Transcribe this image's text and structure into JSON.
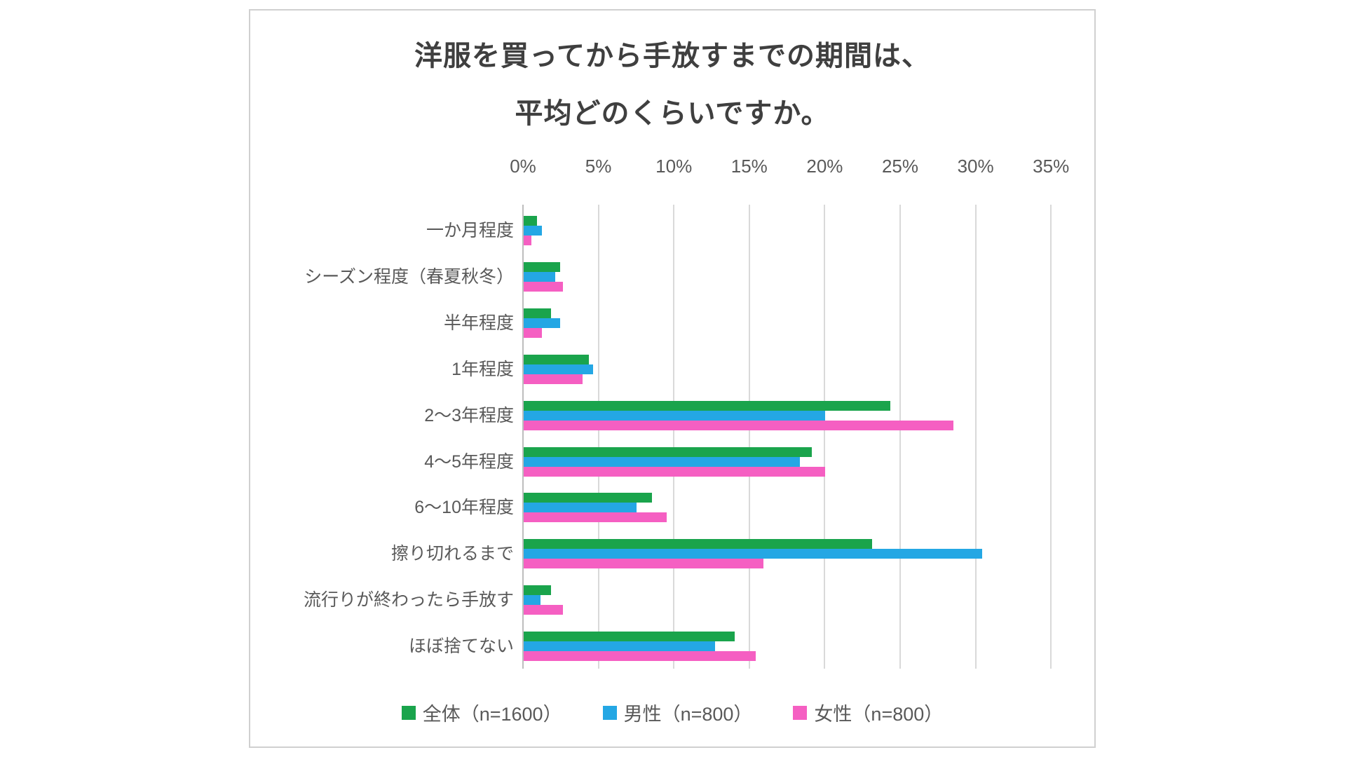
{
  "page": {
    "background_color": "#ffffff",
    "chart_border_color": "#d0d0d0"
  },
  "chart": {
    "title_line1": "洋服を買ってから手放すまでの期間は、",
    "title_line2": "平均どのくらいですか。"
  },
  "chart_data": {
    "type": "bar",
    "orientation": "horizontal",
    "title": "洋服を買ってから手放すまでの期間は、平均どのくらいですか。",
    "categories": [
      "一か月程度",
      "シーズン程度（春夏秋冬）",
      "半年程度",
      "1年程度",
      "2〜3年程度",
      "4〜5年程度",
      "6〜10年程度",
      "擦り切れるまで",
      "流行りが終わったら手放す",
      "ほぼ捨てない"
    ],
    "series": [
      {
        "name": "全体（n=1600）",
        "color": "#1aa44c",
        "values": [
          0.9,
          2.4,
          1.8,
          4.3,
          24.3,
          19.1,
          8.5,
          23.1,
          1.8,
          14.0
        ]
      },
      {
        "name": "男性（n=800）",
        "color": "#24a7e4",
        "values": [
          1.2,
          2.1,
          2.4,
          4.6,
          20.0,
          18.3,
          7.5,
          30.4,
          1.1,
          12.7
        ]
      },
      {
        "name": "女性（n=800）",
        "color": "#f55fc2",
        "values": [
          0.5,
          2.6,
          1.2,
          3.9,
          28.5,
          20.0,
          9.5,
          15.9,
          2.6,
          15.4
        ]
      }
    ],
    "x_axis": {
      "unit": "%",
      "min": 0,
      "max": 35,
      "tick_step": 5,
      "tick_labels": [
        "0%",
        "5%",
        "10%",
        "15%",
        "20%",
        "25%",
        "30%",
        "35%"
      ]
    },
    "grid": true,
    "legend_position": "bottom",
    "colors": {
      "gridline": "#d9d9d9",
      "axis_line": "#bdbdbd",
      "label_text": "#595959",
      "title_text": "#3f3f3f"
    }
  }
}
